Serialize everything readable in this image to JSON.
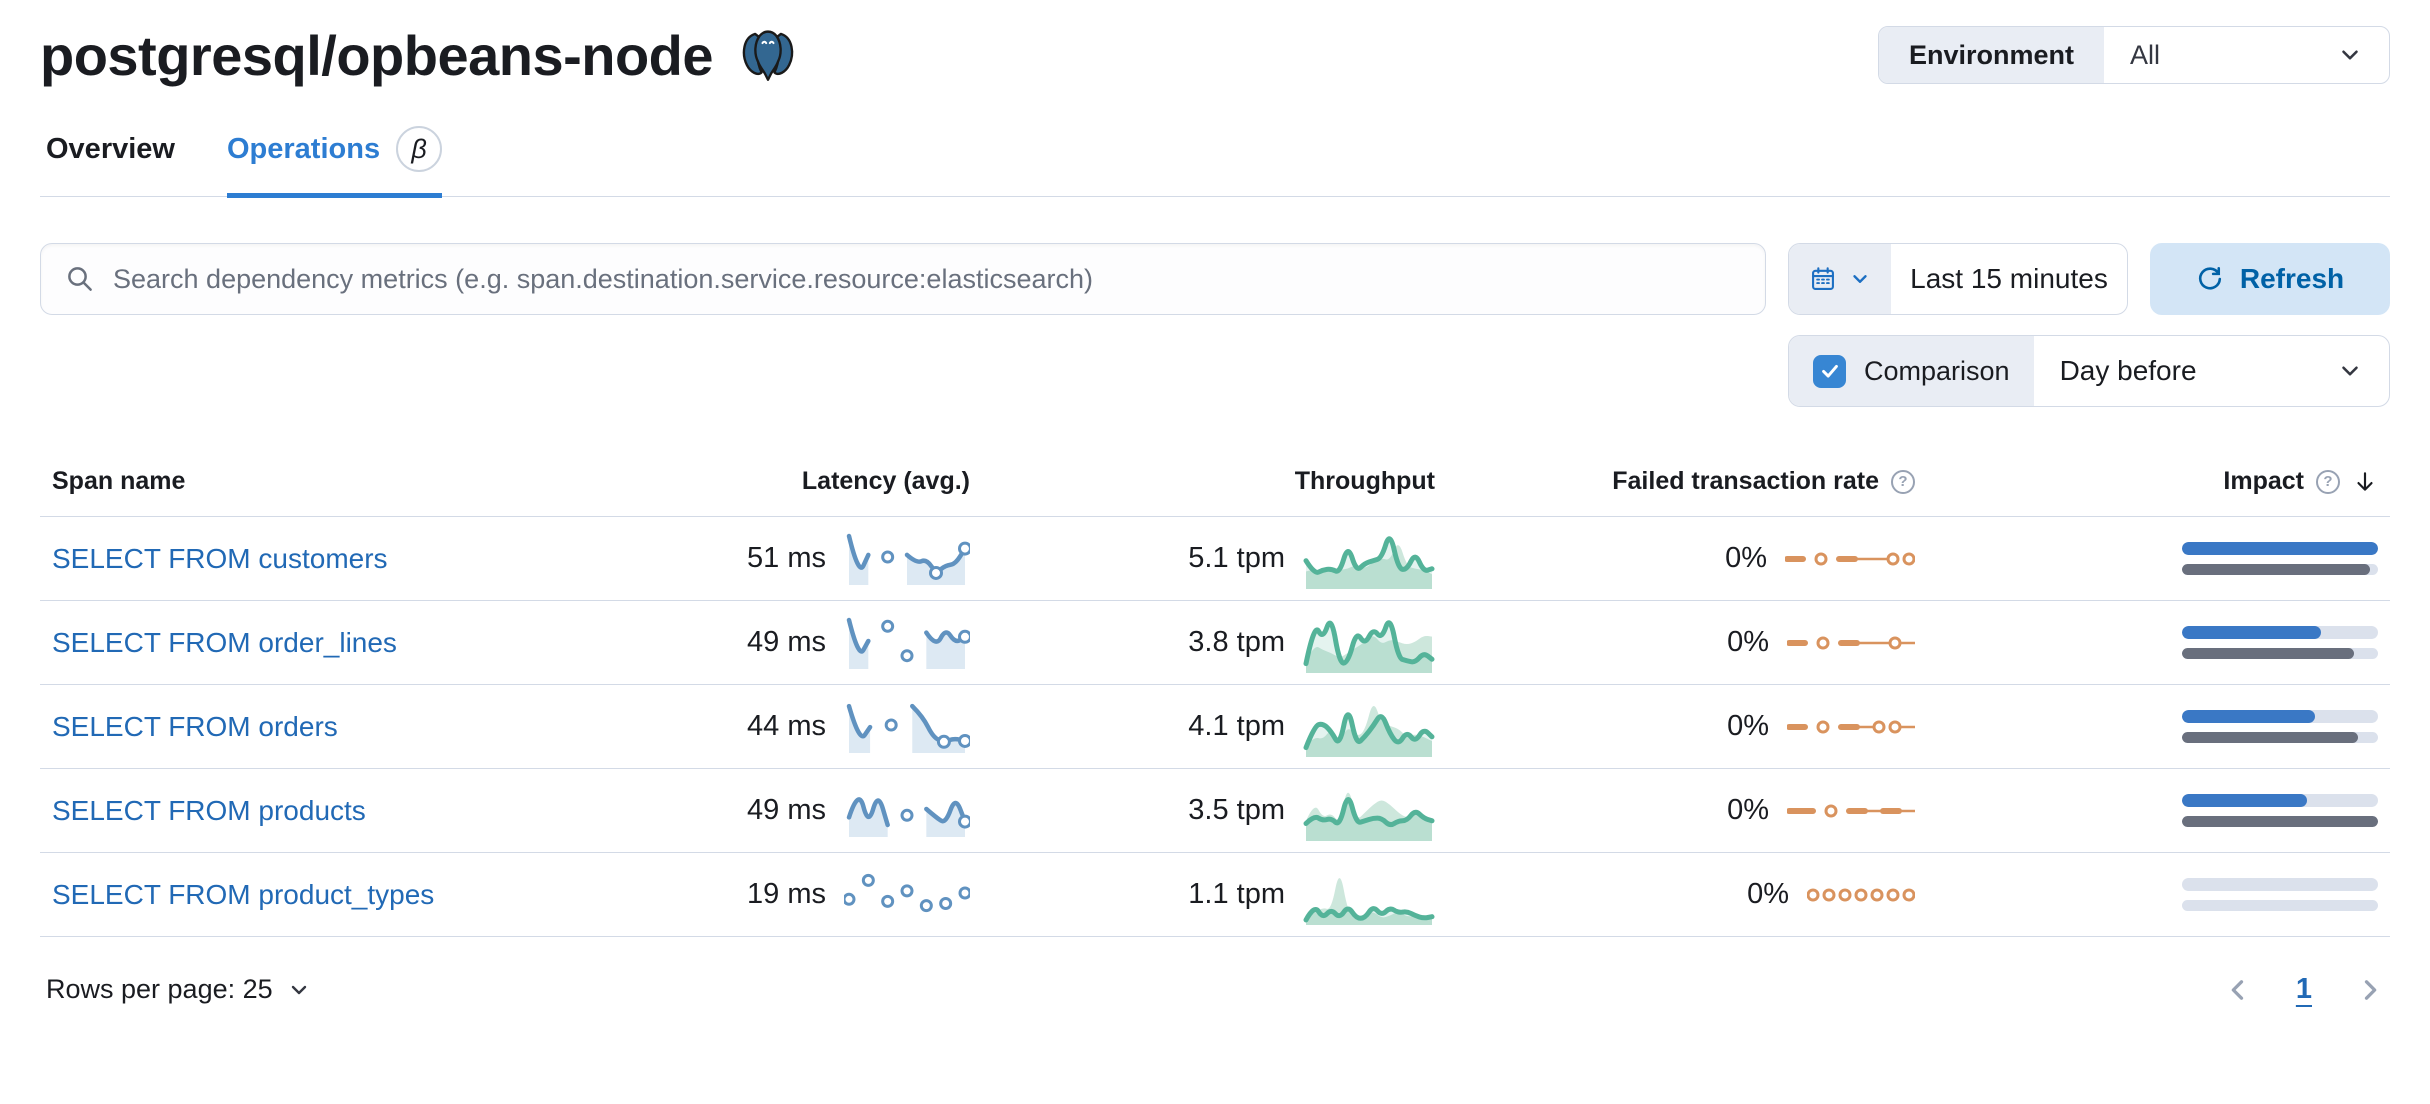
{
  "colors": {
    "primary_blue": "#0061a6",
    "link_blue": "#2169b5",
    "tab_blue": "#2d7dd2",
    "refresh_bg": "#d3e5f6",
    "control_bg": "#e9edf4",
    "border": "#d3dae6",
    "text": "#343741",
    "title_text": "#1a1c21",
    "subdued": "#69707d",
    "icon_gray": "#98a2b3",
    "badge_border": "#cbd3de",
    "checkbox_blue": "#3786d3",
    "vis_blue": "#6092c0",
    "vis_blue_fill": "#dde9f3",
    "vis_green": "#54b399",
    "vis_green_fill": "rgba(84,179,153,0.16)",
    "vis_green_prev": "#cde7dc",
    "vis_orange": "#d9935e",
    "impact_blue": "#3a78c5",
    "impact_gray": "#696f7d",
    "impact_track": "#dbe1ec",
    "elephant_blue": "#336791"
  },
  "icons": {
    "help_glyph": "?"
  },
  "header": {
    "title": "postgresql/opbeans-node",
    "environment_label": "Environment",
    "environment_value": "All"
  },
  "tabs": [
    {
      "label": "Overview"
    },
    {
      "label": "Operations",
      "badge": "β"
    }
  ],
  "toolbar": {
    "search_placeholder": "Search dependency metrics (e.g. span.destination.service.resource:elasticsearch)",
    "time_range": "Last 15 minutes",
    "refresh_label": "Refresh",
    "comparison_label": "Comparison",
    "comparison_checked": true,
    "comparison_value": "Day before"
  },
  "table": {
    "columns": [
      "Span name",
      "Latency (avg.)",
      "Throughput",
      "Failed transaction rate",
      "Impact"
    ],
    "sorted_by": "Impact",
    "rows": [
      {
        "span_name": "SELECT FROM customers",
        "latency": "51 ms",
        "throughput": "5.1 tpm",
        "failed_rate": "0%",
        "impact_current": 100,
        "impact_previous": 96,
        "latency_spark": [
          1,
          0.05,
          0.55,
          null,
          0.5,
          null,
          0.55,
          0.35,
          0.45,
          0.12,
          0.3,
          0.33,
          0.7
        ],
        "latency_markers": [
          9,
          12
        ],
        "throughput_spark": [
          0.45,
          0.2,
          0.28,
          0.3,
          0.22,
          0.75,
          0.25,
          0.4,
          0.45,
          0.5,
          1,
          0.3,
          0.28,
          0.6,
          0.25,
          0.3
        ],
        "throughput_prev_spark": [
          0.25,
          0.3,
          0.22,
          0.35,
          0.28,
          0.3,
          0.38,
          0.3,
          0.42,
          0.5,
          0.45,
          0.85,
          0.35,
          0.3,
          0.28,
          0.2
        ],
        "failed_pattern": [
          "dash",
          "gap",
          "dot",
          "gap",
          "dash",
          "line",
          "dot",
          "sp",
          "dot"
        ]
      },
      {
        "span_name": "SELECT FROM order_lines",
        "latency": "49 ms",
        "throughput": "3.8 tpm",
        "failed_rate": "0%",
        "impact_current": 71,
        "impact_previous": 88,
        "latency_spark": [
          1,
          0.08,
          0.5,
          null,
          0.85,
          null,
          0.15,
          null,
          0.7,
          0.35,
          0.8,
          0.45,
          0.6
        ],
        "latency_markers": [
          12
        ],
        "throughput_spark": [
          0.1,
          0.85,
          0.55,
          1,
          0.1,
          0.12,
          0.7,
          0.45,
          0.75,
          0.55,
          1,
          0.2,
          0.15,
          0.12,
          0.3,
          0.18
        ],
        "throughput_prev_spark": [
          0.15,
          0.45,
          0.35,
          0.3,
          0.2,
          0.3,
          0.4,
          0.5,
          0.65,
          0.45,
          0.55,
          0.5,
          0.45,
          0.5,
          0.62,
          0.6
        ],
        "failed_pattern": [
          "dash",
          "gap",
          "dot",
          "gap",
          "dash",
          "line",
          "dot",
          "short"
        ]
      },
      {
        "span_name": "SELECT FROM orders",
        "latency": "44 ms",
        "throughput": "4.1 tpm",
        "failed_rate": "0%",
        "impact_current": 68,
        "impact_previous": 90,
        "latency_spark": [
          0.95,
          0.08,
          0.45,
          null,
          0.5,
          null,
          0.95,
          0.7,
          0.2,
          0.1,
          0.18,
          0.12
        ],
        "latency_markers": [
          9,
          11
        ],
        "throughput_spark": [
          0.1,
          0.5,
          0.55,
          0.4,
          0.12,
          0.9,
          0.15,
          0.3,
          0.5,
          0.75,
          0.35,
          0.15,
          0.4,
          0.2,
          0.45,
          0.3
        ],
        "throughput_prev_spark": [
          0.15,
          0.3,
          0.25,
          0.45,
          0.2,
          0.5,
          0.3,
          0.4,
          1,
          0.55,
          0.5,
          0.45,
          0.3,
          0.35,
          0.3,
          0.22
        ],
        "failed_pattern": [
          "dash",
          "gap",
          "dot",
          "gap",
          "dash",
          "short",
          "dot",
          "sp",
          "dot",
          "short"
        ]
      },
      {
        "span_name": "SELECT FROM products",
        "latency": "49 ms",
        "throughput": "3.5 tpm",
        "failed_rate": "0%",
        "impact_current": 64,
        "impact_previous": 100,
        "latency_spark": [
          0.3,
          1,
          0.1,
          0.9,
          0.12,
          null,
          0.35,
          null,
          0.5,
          0.3,
          0.15,
          0.8,
          0.2
        ],
        "latency_markers": [
          12
        ],
        "throughput_spark": [
          0.25,
          0.4,
          0.3,
          0.35,
          0.2,
          0.85,
          0.25,
          0.3,
          0.35,
          0.35,
          0.2,
          0.3,
          0.3,
          0.5,
          0.35,
          0.3
        ],
        "throughput_prev_spark": [
          0.3,
          0.65,
          0.35,
          0.45,
          0.25,
          1,
          0.3,
          0.45,
          0.6,
          0.7,
          0.6,
          0.45,
          0.35,
          0.45,
          0.4,
          0.3
        ],
        "failed_pattern": [
          "bigdash",
          "gap",
          "dot",
          "gap",
          "dash",
          "short",
          "dash",
          "short"
        ]
      },
      {
        "span_name": "SELECT FROM product_types",
        "latency": "19 ms",
        "throughput": "1.1 tpm",
        "failed_rate": "0%",
        "impact_current": 0,
        "impact_previous": 0,
        "latency_spark": [
          0.35,
          null,
          0.8,
          null,
          0.3,
          null,
          0.55,
          null,
          0.2,
          null,
          0.25,
          null,
          0.5
        ],
        "latency_markers": [],
        "throughput_spark": [
          0.02,
          0.3,
          0.05,
          0.22,
          0.05,
          0.28,
          0.05,
          0.05,
          0.28,
          0.1,
          0.25,
          0.15,
          0.18,
          0.1,
          0.05,
          0.08
        ],
        "throughput_prev_spark": [
          0.05,
          0.15,
          0.25,
          0.2,
          1,
          0.15,
          0.08,
          0.12,
          0.18,
          0.05,
          0.1,
          0.18,
          0.08,
          0.1,
          0.12,
          0.05
        ],
        "failed_pattern": [
          "dot",
          "sp",
          "dot",
          "sp",
          "dot",
          "sp",
          "dot",
          "sp",
          "dot",
          "sp",
          "dot",
          "sp",
          "dot"
        ]
      }
    ]
  },
  "footer": {
    "rows_per_page_label": "Rows per page: 25",
    "page": "1"
  }
}
